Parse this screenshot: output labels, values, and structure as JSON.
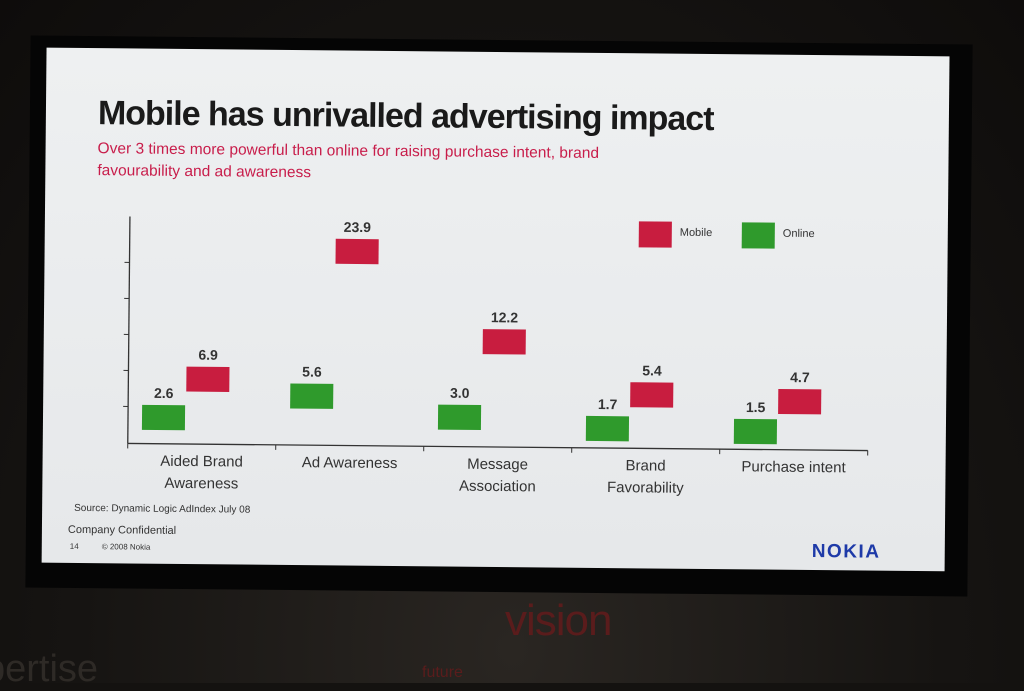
{
  "slide": {
    "title": "Mobile has unrivalled advertising impact",
    "subtitle": "Over 3 times more powerful than online for raising purchase intent, brand favourability and ad awareness",
    "source": "Source: Dynamic Logic AdIndex July 08",
    "confidential": "Company Confidential",
    "page_number": "14",
    "copyright": "© 2008 Nokia",
    "logo_text": "NOKIA"
  },
  "chart_data": {
    "type": "bar",
    "categories": [
      [
        "Aided Brand",
        "Awareness"
      ],
      [
        "Ad Awareness"
      ],
      [
        "Message",
        "Association"
      ],
      [
        "Brand",
        "Favorability"
      ],
      [
        "Purchase intent"
      ]
    ],
    "series": [
      {
        "name": "Online",
        "color": "#2f9a2c",
        "values": [
          2.6,
          5.6,
          3.0,
          1.7,
          1.5
        ],
        "labels": [
          "2.6",
          "5.6",
          "3.0",
          "1.7",
          "1.5"
        ]
      },
      {
        "name": "Mobile",
        "color": "#c81d3f",
        "values": [
          6.9,
          23.9,
          12.2,
          5.4,
          4.7
        ],
        "labels": [
          "6.9",
          "23.9",
          "12.2",
          "5.4",
          "4.7"
        ]
      }
    ],
    "legend_position": "top-right",
    "grid": false
  },
  "background": {
    "words": [
      "vision",
      "pertise",
      "future"
    ]
  }
}
